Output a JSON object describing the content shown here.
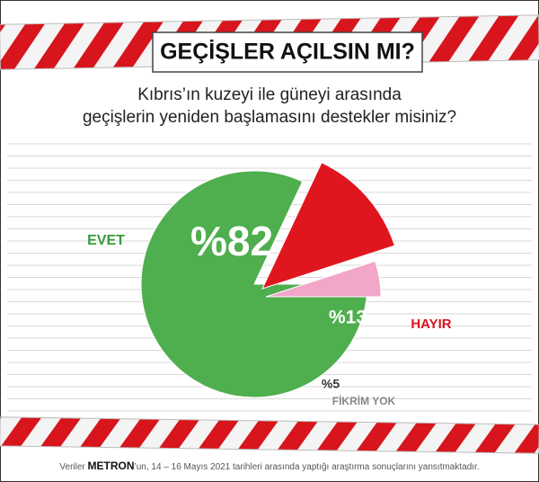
{
  "chart_data": {
    "type": "pie",
    "title": "GEÇİŞLER AÇILSIN MI?",
    "subtitle": [
      "Kıbrıs’ın kuzeyi ile güneyi arasında",
      "geçişlerin yeniden başlamasını destekler misiniz?"
    ],
    "categories": [
      "EVET",
      "HAYIR",
      "FİKRİM YOK"
    ],
    "values": [
      82,
      13,
      5
    ],
    "value_labels": [
      "%82",
      "%13",
      "%5"
    ],
    "colors": [
      "#4fae4e",
      "#e0161f",
      "#f2a6c8"
    ],
    "source": [
      "Veriler ",
      "METRON",
      "’un, 14 – 16 Mayıs 2021 tarihleri arasında yaptığı araştırma sonuçlarını yansıtmaktadır."
    ]
  }
}
